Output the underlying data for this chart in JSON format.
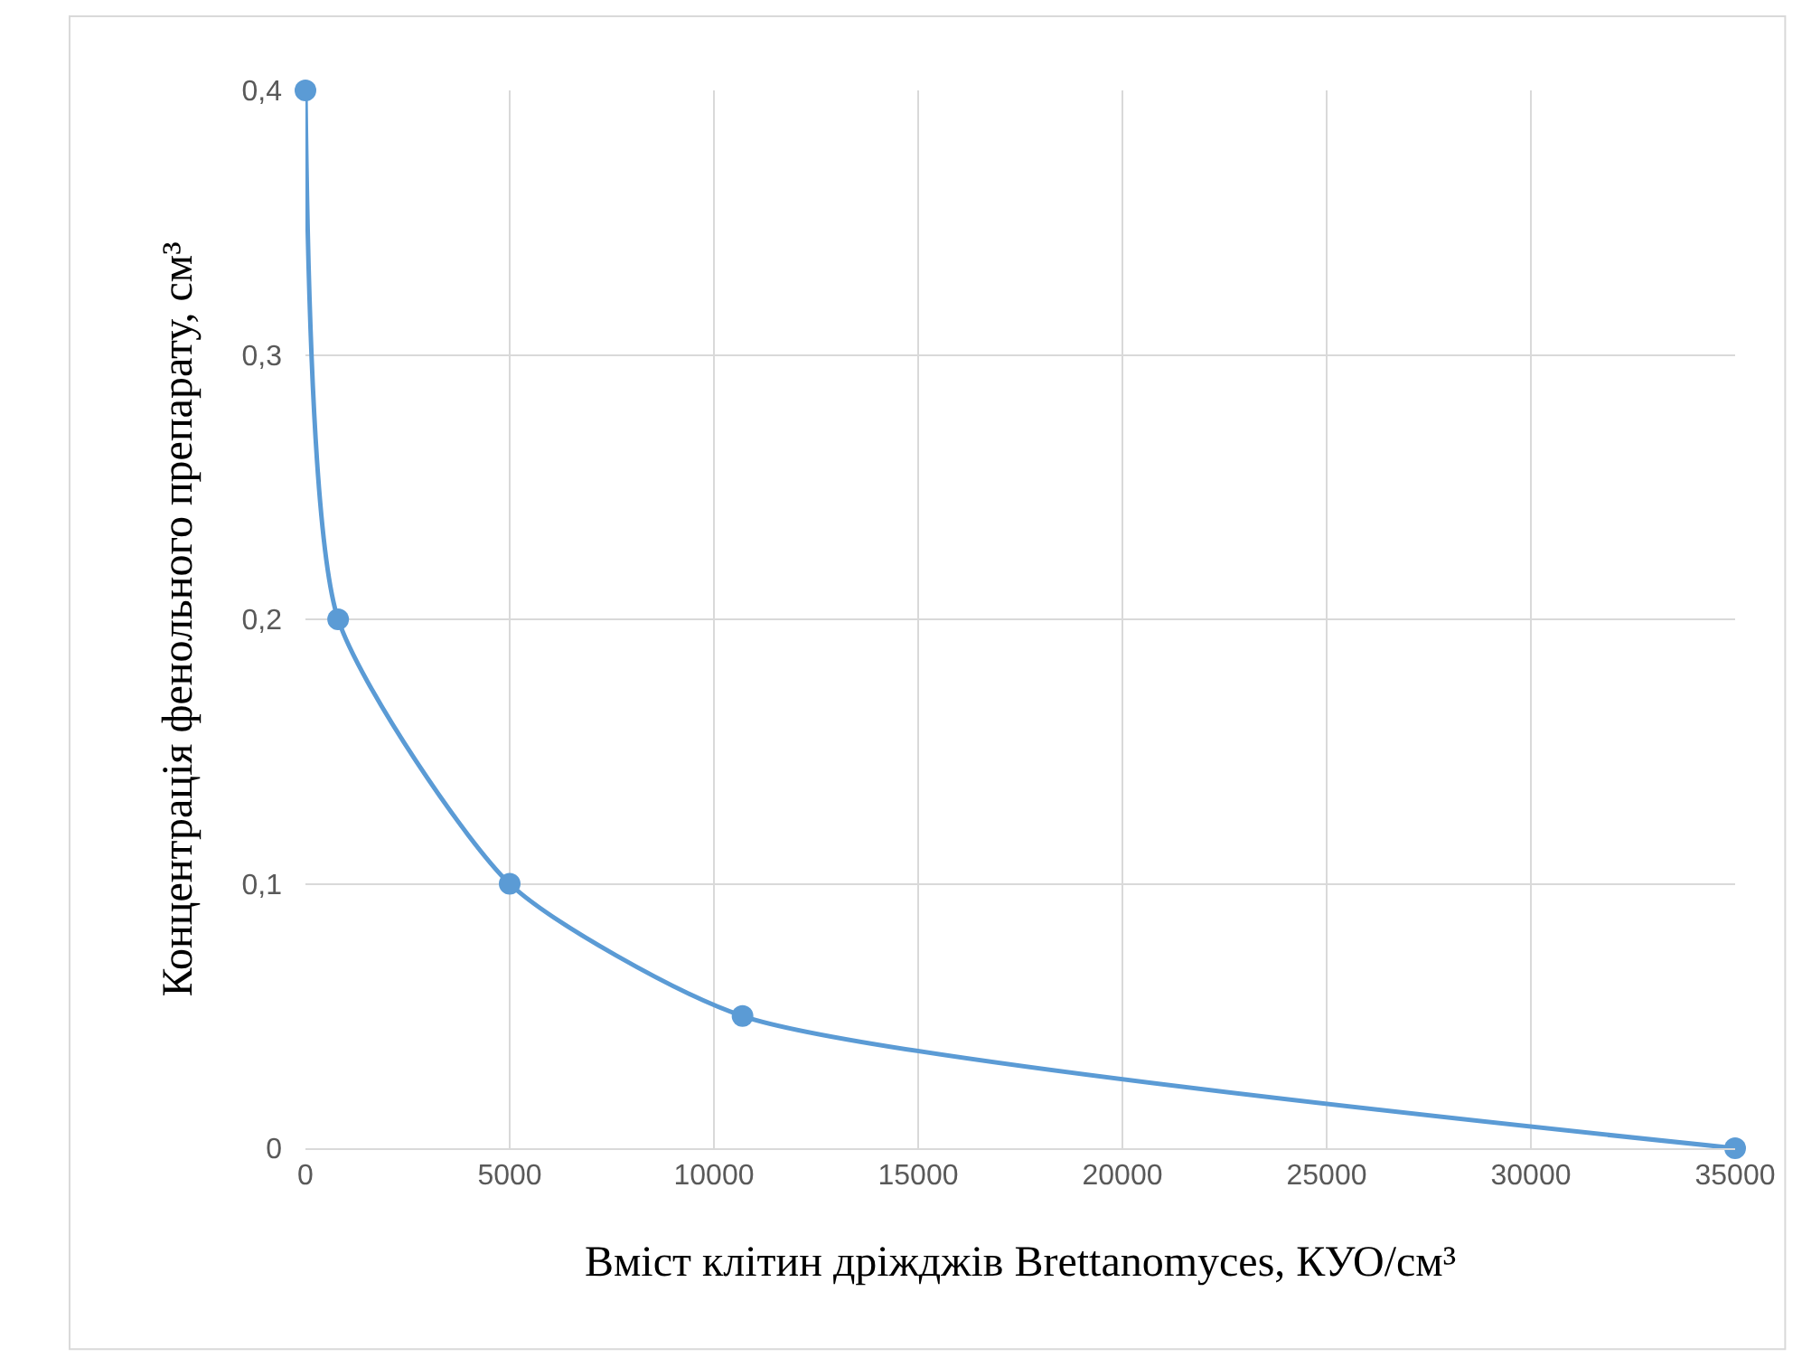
{
  "chart_data": {
    "type": "line",
    "xlabel": "Вміст клітин дріжджів Brettanomyces, КУО/см³",
    "ylabel": "Концентрація фенольного препарату, см³",
    "x": [
      0,
      800,
      5000,
      10700,
      35000
    ],
    "series": [
      {
        "color": "#5b9bd5",
        "values": [
          0.4,
          0.2,
          0.1,
          0.05,
          0
        ]
      }
    ],
    "xlim": [
      0,
      35000
    ],
    "xticks": [
      0,
      5000,
      10000,
      15000,
      20000,
      25000,
      30000,
      35000
    ],
    "ylim": [
      0,
      0.4
    ],
    "yticks": [
      {
        "value": 0,
        "label": "0"
      },
      {
        "value": 0.1,
        "label": "0,1"
      },
      {
        "value": 0.2,
        "label": "0,2"
      },
      {
        "value": 0.3,
        "label": "0,3"
      },
      {
        "value": 0.4,
        "label": "0,4"
      }
    ],
    "grid": true,
    "marker": "circle",
    "line_style": "solid"
  }
}
